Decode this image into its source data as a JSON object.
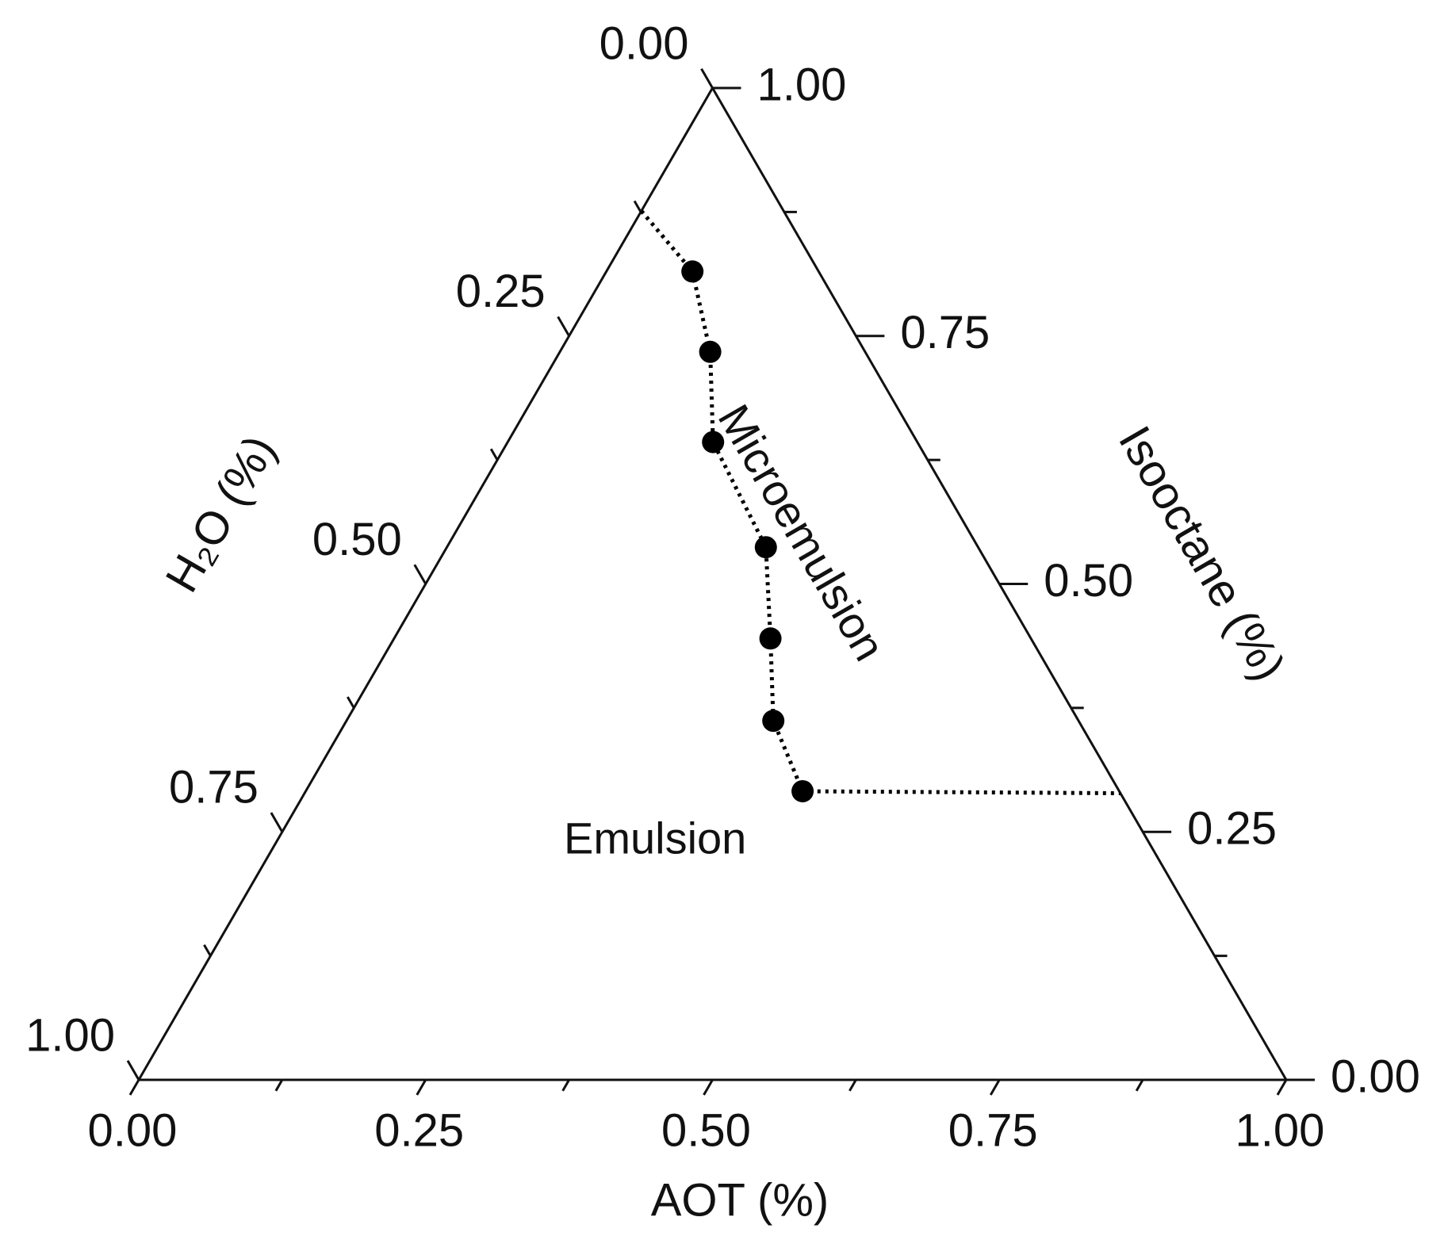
{
  "chart_data": {
    "type": "ternary",
    "axes": {
      "bottom": {
        "title": "AOT (%)",
        "ticks": [
          {
            "value": 0,
            "label": "0.00"
          },
          {
            "value": 0.25,
            "label": "0.25"
          },
          {
            "value": 0.5,
            "label": "0.50"
          },
          {
            "value": 0.75,
            "label": "0.75"
          },
          {
            "value": 1,
            "label": "1.00"
          }
        ]
      },
      "left": {
        "title": "H₂O (%)",
        "ticks": [
          {
            "value": 0,
            "label": "0.00"
          },
          {
            "value": 0.25,
            "label": "0.25"
          },
          {
            "value": 0.5,
            "label": "0.50"
          },
          {
            "value": 0.75,
            "label": "0.75"
          },
          {
            "value": 1,
            "label": "1.00"
          }
        ]
      },
      "right": {
        "title": "Isooctane (%)",
        "ticks": [
          {
            "value": 0,
            "label": "0.00"
          },
          {
            "value": 0.25,
            "label": "0.25"
          },
          {
            "value": 0.5,
            "label": "0.50"
          },
          {
            "value": 0.75,
            "label": "0.75"
          },
          {
            "value": 1,
            "label": "1.00"
          }
        ]
      }
    },
    "minor_ticks": [
      0.125,
      0.375,
      0.625,
      0.875
    ],
    "boundary": {
      "line_style": "dotted",
      "color": "#000000",
      "aot": [
        0.0,
        0.075,
        0.131,
        0.179,
        0.278,
        0.328,
        0.372,
        0.433,
        0.711
      ],
      "isooctane": [
        0.876,
        0.815,
        0.734,
        0.643,
        0.537,
        0.445,
        0.362,
        0.291,
        0.289
      ],
      "h2o": [
        0.124,
        0.11,
        0.135,
        0.178,
        0.185,
        0.227,
        0.266,
        0.276,
        0.0
      ]
    },
    "points": {
      "color": "#000000",
      "aot": [
        0.075,
        0.131,
        0.179,
        0.278,
        0.328,
        0.372,
        0.433
      ],
      "isooctane": [
        0.815,
        0.734,
        0.643,
        0.537,
        0.445,
        0.362,
        0.291
      ],
      "h2o": [
        0.11,
        0.135,
        0.178,
        0.185,
        0.227,
        0.266,
        0.276
      ]
    },
    "annotations": [
      {
        "text": "Microemulsion",
        "aot": 0.3,
        "isooctane": 0.55,
        "rotate": 60
      },
      {
        "text": "Emulsion",
        "aot": 0.33,
        "isooctane": 0.24,
        "rotate": 0
      }
    ]
  }
}
